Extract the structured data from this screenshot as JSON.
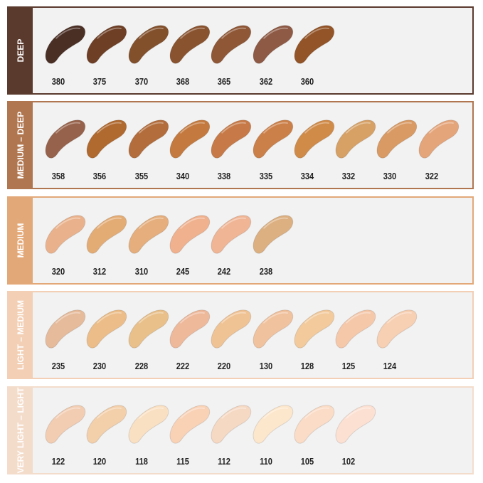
{
  "groups": [
    {
      "name": "DEEP",
      "color": "#5b3a2e",
      "shades": [
        {
          "code": "380",
          "color": "#4a2f25"
        },
        {
          "code": "375",
          "color": "#6e3f25"
        },
        {
          "code": "370",
          "color": "#83502c"
        },
        {
          "code": "368",
          "color": "#8a532f"
        },
        {
          "code": "365",
          "color": "#8f5736"
        },
        {
          "code": "362",
          "color": "#8e5a45"
        },
        {
          "code": "360",
          "color": "#935427"
        }
      ]
    },
    {
      "name": "MEDIUM – DEEP",
      "color": "#b07650",
      "shades": [
        {
          "code": "358",
          "color": "#97624b"
        },
        {
          "code": "356",
          "color": "#b0692f"
        },
        {
          "code": "355",
          "color": "#b36d3c"
        },
        {
          "code": "340",
          "color": "#c47a3f"
        },
        {
          "code": "338",
          "color": "#c77a48"
        },
        {
          "code": "335",
          "color": "#cc8049"
        },
        {
          "code": "334",
          "color": "#d08b49"
        },
        {
          "code": "332",
          "color": "#d7a166"
        },
        {
          "code": "330",
          "color": "#d99a64"
        },
        {
          "code": "322",
          "color": "#e5a57a"
        }
      ]
    },
    {
      "name": "MEDIUM",
      "color": "#e3a878",
      "shades": [
        {
          "code": "320",
          "color": "#eab28c"
        },
        {
          "code": "312",
          "color": "#e4ac75"
        },
        {
          "code": "310",
          "color": "#e5ae7c"
        },
        {
          "code": "245",
          "color": "#f0b18e"
        },
        {
          "code": "242",
          "color": "#f0b595"
        },
        {
          "code": "238",
          "color": "#dcb081"
        }
      ]
    },
    {
      "name": "LIGHT – MEDIUM",
      "color": "#f2cfb5",
      "shades": [
        {
          "code": "235",
          "color": "#e6bb9b"
        },
        {
          "code": "230",
          "color": "#ecbd88"
        },
        {
          "code": "228",
          "color": "#e9c08a"
        },
        {
          "code": "222",
          "color": "#eeb99b"
        },
        {
          "code": "220",
          "color": "#f0c395"
        },
        {
          "code": "130",
          "color": "#f1c29e"
        },
        {
          "code": "128",
          "color": "#f2ca9c"
        },
        {
          "code": "125",
          "color": "#f5c8aa"
        },
        {
          "code": "124",
          "color": "#f7cfb2"
        }
      ]
    },
    {
      "name": "VERY LIGHT – LIGHT",
      "color": "#f4dccb",
      "shades": [
        {
          "code": "122",
          "color": "#f2cdb2"
        },
        {
          "code": "120",
          "color": "#f3cfaa"
        },
        {
          "code": "118",
          "color": "#fae0c2"
        },
        {
          "code": "115",
          "color": "#f9d2b6"
        },
        {
          "code": "112",
          "color": "#f6d9c3"
        },
        {
          "code": "110",
          "color": "#fde7cc"
        },
        {
          "code": "105",
          "color": "#fbdcc6"
        },
        {
          "code": "102",
          "color": "#fce1d3"
        }
      ]
    }
  ]
}
